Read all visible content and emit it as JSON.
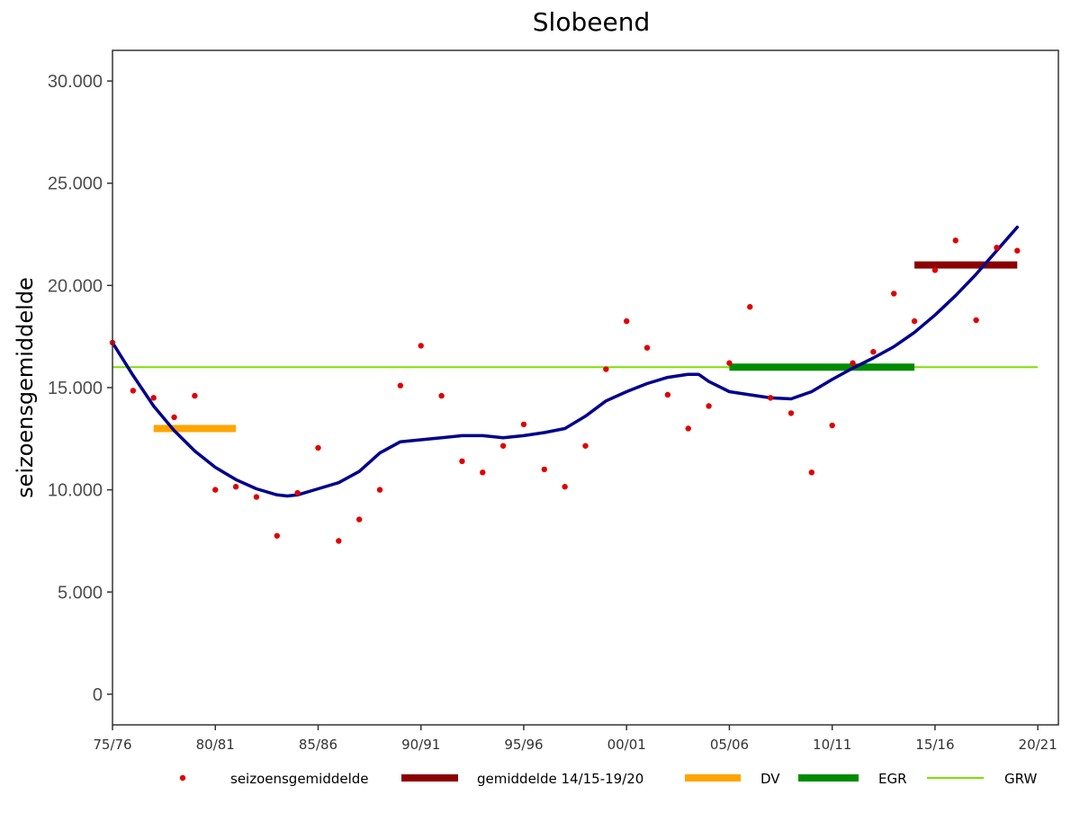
{
  "chart_data": {
    "type": "scatter",
    "title": "Slobeend",
    "xlabel": "",
    "ylabel": "seizoensgemiddelde",
    "x_ticks": [
      "75/76",
      "80/81",
      "85/86",
      "90/91",
      "95/96",
      "00/01",
      "05/06",
      "10/11",
      "15/16",
      "20/21"
    ],
    "xlim": [
      1975,
      2021
    ],
    "ylim": [
      -1500,
      31500
    ],
    "y_ticks": [
      {
        "value": 0,
        "label": "0"
      },
      {
        "value": 5000,
        "label": "5.000"
      },
      {
        "value": 10000,
        "label": "10.000"
      },
      {
        "value": 15000,
        "label": "15.000"
      },
      {
        "value": 20000,
        "label": "20.000"
      },
      {
        "value": 25000,
        "label": "25.000"
      },
      {
        "value": 30000,
        "label": "30.000"
      }
    ],
    "grid": false,
    "legend_position": "bottom",
    "points": {
      "name": "seizoensgemiddelde",
      "color": "#e00000",
      "x": [
        1975,
        1976,
        1977,
        1978,
        1979,
        1980,
        1981,
        1982,
        1983,
        1984,
        1985,
        1986,
        1987,
        1988,
        1989,
        1990,
        1991,
        1992,
        1993,
        1994,
        1995,
        1996,
        1997,
        1998,
        1999,
        2000,
        2001,
        2002,
        2003,
        2004,
        2005,
        2006,
        2007,
        2008,
        2009,
        2010,
        2011,
        2012,
        2013,
        2014,
        2015,
        2016,
        2017,
        2018,
        2019
      ],
      "y": [
        17200,
        14850,
        14500,
        13550,
        14600,
        10000,
        10150,
        9650,
        7750,
        9850,
        12050,
        7500,
        8550,
        10000,
        15100,
        17050,
        14600,
        11400,
        10850,
        12150,
        13200,
        11000,
        10150,
        12150,
        15900,
        18250,
        16950,
        14650,
        13000,
        14100,
        16200,
        18950,
        14500,
        13750,
        10850,
        13150,
        16200,
        16750,
        19600,
        18250,
        20750,
        22200,
        18300,
        21850,
        21700
      ]
    },
    "trend": {
      "name": "trend",
      "color": "#00008b",
      "x": [
        1975,
        1976,
        1977,
        1978,
        1979,
        1980,
        1981,
        1982,
        1983,
        1983.5,
        1984,
        1985,
        1986,
        1987,
        1988,
        1989,
        1990,
        1991,
        1992,
        1993,
        1994,
        1995,
        1996,
        1997,
        1998,
        1999,
        2000,
        2001,
        2002,
        2003,
        2003.5,
        2004,
        2005,
        2006,
        2007,
        2008,
        2009,
        2010,
        2011,
        2012,
        2013,
        2014,
        2015,
        2016,
        2017,
        2018,
        2019
      ],
      "y": [
        17200,
        15600,
        14100,
        12900,
        11900,
        11100,
        10500,
        10050,
        9750,
        9700,
        9750,
        10050,
        10350,
        10900,
        11800,
        12350,
        12450,
        12550,
        12650,
        12650,
        12550,
        12650,
        12800,
        13000,
        13600,
        14350,
        14800,
        15200,
        15500,
        15650,
        15650,
        15300,
        14800,
        14650,
        14500,
        14450,
        14800,
        15400,
        15950,
        16450,
        17000,
        17700,
        18550,
        19500,
        20550,
        21700,
        22850
      ]
    },
    "segments": [
      {
        "name": "gemiddelde 14/15-19/20",
        "color": "#8b0000",
        "x": [
          2014,
          2019
        ],
        "y": 21000
      },
      {
        "name": "DV",
        "color": "#ffa500",
        "x": [
          1977,
          1981
        ],
        "y": 13000
      },
      {
        "name": "EGR",
        "color": "#008b00",
        "x": [
          2005,
          2014
        ],
        "y": 16000
      },
      {
        "name": "GRW",
        "color": "#7fe000",
        "x": [
          1975,
          2020
        ],
        "y": 16000
      }
    ],
    "legend": [
      {
        "label": "seizoensgemiddelde",
        "kind": "point",
        "color": "#e00000"
      },
      {
        "label": "gemiddelde 14/15-19/20",
        "kind": "thick",
        "color": "#8b0000"
      },
      {
        "label": "DV",
        "kind": "thick",
        "color": "#ffa500"
      },
      {
        "label": "EGR",
        "kind": "thick",
        "color": "#008b00"
      },
      {
        "label": "GRW",
        "kind": "thin",
        "color": "#7fe000"
      }
    ]
  }
}
